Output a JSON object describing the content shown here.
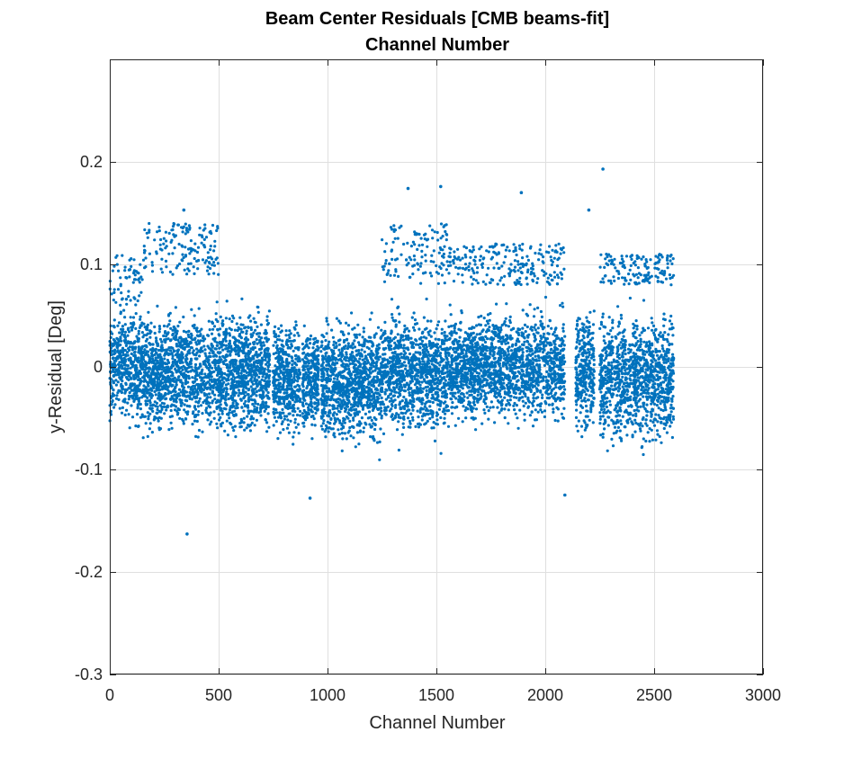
{
  "chart_data": {
    "type": "scatter",
    "title": [
      "Beam Center Residuals [CMB beams-fit]",
      "Channel Number"
    ],
    "xlabel": "Channel Number",
    "ylabel": "y-Residual [Deg]",
    "xlim": [
      0,
      3000
    ],
    "ylim": [
      -0.3,
      0.3
    ],
    "xticks": [
      0,
      500,
      1000,
      1500,
      2000,
      2500,
      3000
    ],
    "yticks": [
      -0.3,
      -0.2,
      -0.1,
      0,
      0.1,
      0.2
    ],
    "xtick_labels": [
      "0",
      "500",
      "1000",
      "1500",
      "2000",
      "2500",
      "3000"
    ],
    "ytick_labels": [
      "-0.3",
      "-0.2",
      "-0.1",
      "0",
      "0.1",
      "0.2"
    ],
    "grid": true,
    "marker_color": "#0072BD",
    "approx_point_count": 9000,
    "occupied_channel_ranges": [
      [
        0,
        735
      ],
      [
        750,
        875
      ],
      [
        885,
        960
      ],
      [
        970,
        2090
      ],
      [
        2140,
        2225
      ],
      [
        2250,
        2590
      ]
    ],
    "density_profile": [
      {
        "x_range": [
          0,
          150
        ],
        "y_core": [
          -0.05,
          0.05
        ],
        "y_upper_band": [
          0.06,
          0.11
        ],
        "y_min": -0.09,
        "y_max": 0.12
      },
      {
        "x_range": [
          150,
          500
        ],
        "y_core": [
          -0.06,
          0.05
        ],
        "y_upper_band": [
          0.09,
          0.14
        ],
        "y_min": -0.165,
        "y_max": 0.155
      },
      {
        "x_range": [
          500,
          735
        ],
        "y_core": [
          -0.06,
          0.05
        ],
        "y_upper_band": [],
        "y_min": -0.09,
        "y_max": 0.09
      },
      {
        "x_range": [
          750,
          960
        ],
        "y_core": [
          -0.06,
          0.04
        ],
        "y_upper_band": [],
        "y_min": -0.13,
        "y_max": 0.05
      },
      {
        "x_range": [
          970,
          1250
        ],
        "y_core": [
          -0.07,
          0.04
        ],
        "y_upper_band": [],
        "y_min": -0.12,
        "y_max": 0.09
      },
      {
        "x_range": [
          1250,
          1550
        ],
        "y_core": [
          -0.06,
          0.05
        ],
        "y_upper_band": [
          0.08,
          0.14
        ],
        "y_min": -0.105,
        "y_max": 0.175
      },
      {
        "x_range": [
          1550,
          2090
        ],
        "y_core": [
          -0.05,
          0.05
        ],
        "y_upper_band": [
          0.08,
          0.12
        ],
        "y_min": -0.125,
        "y_max": 0.17
      },
      {
        "x_range": [
          2140,
          2225
        ],
        "y_core": [
          -0.06,
          0.05
        ],
        "y_upper_band": [],
        "y_min": -0.11,
        "y_max": 0.155
      },
      {
        "x_range": [
          2250,
          2590
        ],
        "y_core": [
          -0.07,
          0.05
        ],
        "y_upper_band": [
          0.08,
          0.11
        ],
        "y_min": -0.115,
        "y_max": 0.193
      }
    ],
    "notable_points": [
      {
        "x": 355,
        "y": -0.163
      },
      {
        "x": 920,
        "y": -0.128
      },
      {
        "x": 2090,
        "y": -0.125
      },
      {
        "x": 1370,
        "y": 0.174
      },
      {
        "x": 1520,
        "y": 0.176
      },
      {
        "x": 2265,
        "y": 0.193
      },
      {
        "x": 1890,
        "y": 0.17
      },
      {
        "x": 340,
        "y": 0.153
      },
      {
        "x": 2200,
        "y": 0.153
      }
    ]
  }
}
